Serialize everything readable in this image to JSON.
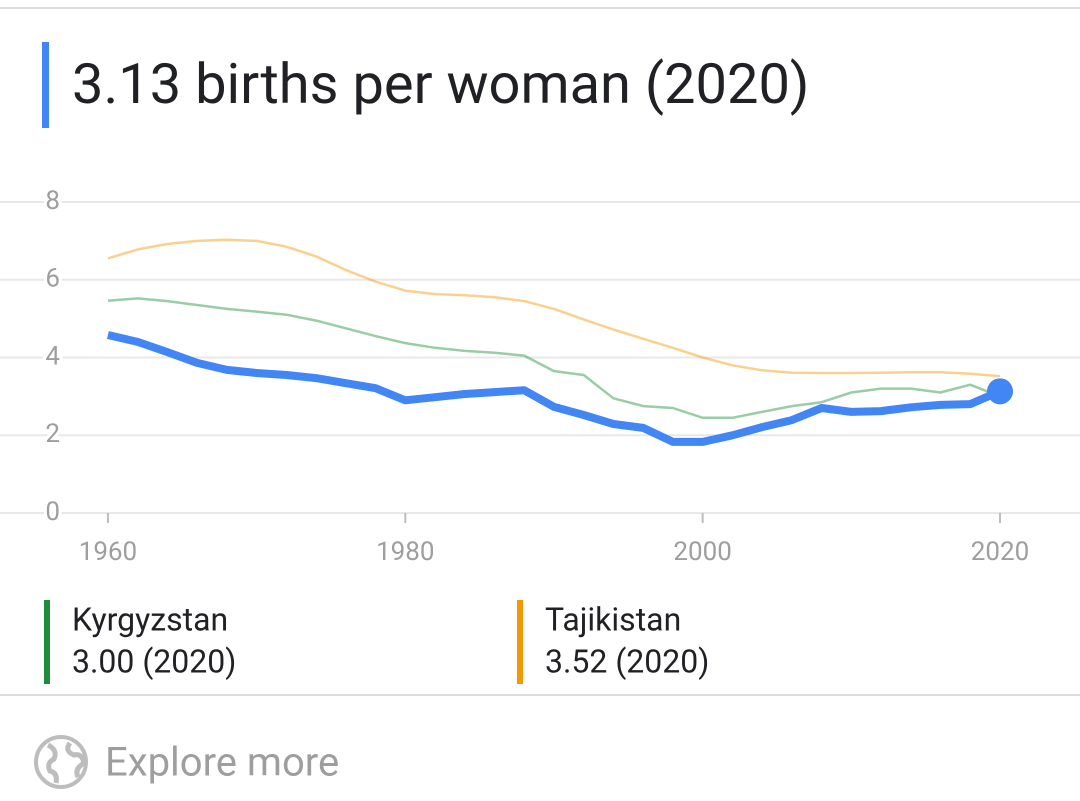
{
  "chart_data": {
    "type": "line",
    "title": "3.13 births per woman (2020)",
    "x": [
      1960,
      1962,
      1964,
      1966,
      1968,
      1970,
      1972,
      1974,
      1976,
      1978,
      1980,
      1982,
      1984,
      1986,
      1988,
      1990,
      1992,
      1994,
      1996,
      1998,
      2000,
      2002,
      2004,
      2006,
      2008,
      2010,
      2012,
      2014,
      2016,
      2018,
      2020
    ],
    "series": [
      {
        "color": "#4285f4",
        "values": [
          4.58,
          4.4,
          4.14,
          3.86,
          3.68,
          3.6,
          3.55,
          3.47,
          3.34,
          3.21,
          2.9,
          2.98,
          3.06,
          3.11,
          3.16,
          2.73,
          2.52,
          2.29,
          2.19,
          1.83,
          1.83,
          2.0,
          2.21,
          2.39,
          2.7,
          2.6,
          2.62,
          2.72,
          2.78,
          2.8,
          3.13
        ]
      },
      {
        "name": "Kyrgyzstan",
        "latest": "3.00 (2020)",
        "color": "#1e8e3e",
        "values": [
          5.46,
          5.52,
          5.45,
          5.35,
          5.25,
          5.18,
          5.1,
          4.95,
          4.75,
          4.55,
          4.37,
          4.25,
          4.17,
          4.12,
          4.05,
          3.65,
          3.55,
          2.95,
          2.75,
          2.7,
          2.45,
          2.45,
          2.6,
          2.75,
          2.85,
          3.1,
          3.2,
          3.2,
          3.1,
          3.3,
          3.0
        ]
      },
      {
        "name": "Tajikistan",
        "latest": "3.52 (2020)",
        "color": "#f29900",
        "values": [
          6.55,
          6.78,
          6.92,
          7.0,
          7.03,
          7.0,
          6.85,
          6.6,
          6.25,
          5.95,
          5.72,
          5.63,
          5.6,
          5.55,
          5.45,
          5.25,
          4.98,
          4.72,
          4.48,
          4.25,
          4.0,
          3.8,
          3.67,
          3.61,
          3.6,
          3.6,
          3.61,
          3.62,
          3.62,
          3.58,
          3.52
        ]
      }
    ],
    "xlim": [
      1952.74,
      2025.38
    ],
    "xticks": [
      1960,
      1980,
      2000,
      2020
    ],
    "ylim": [
      0,
      8
    ],
    "yticks": [
      0,
      2,
      4,
      6,
      8
    ],
    "grid": true,
    "footer": "Explore more"
  }
}
